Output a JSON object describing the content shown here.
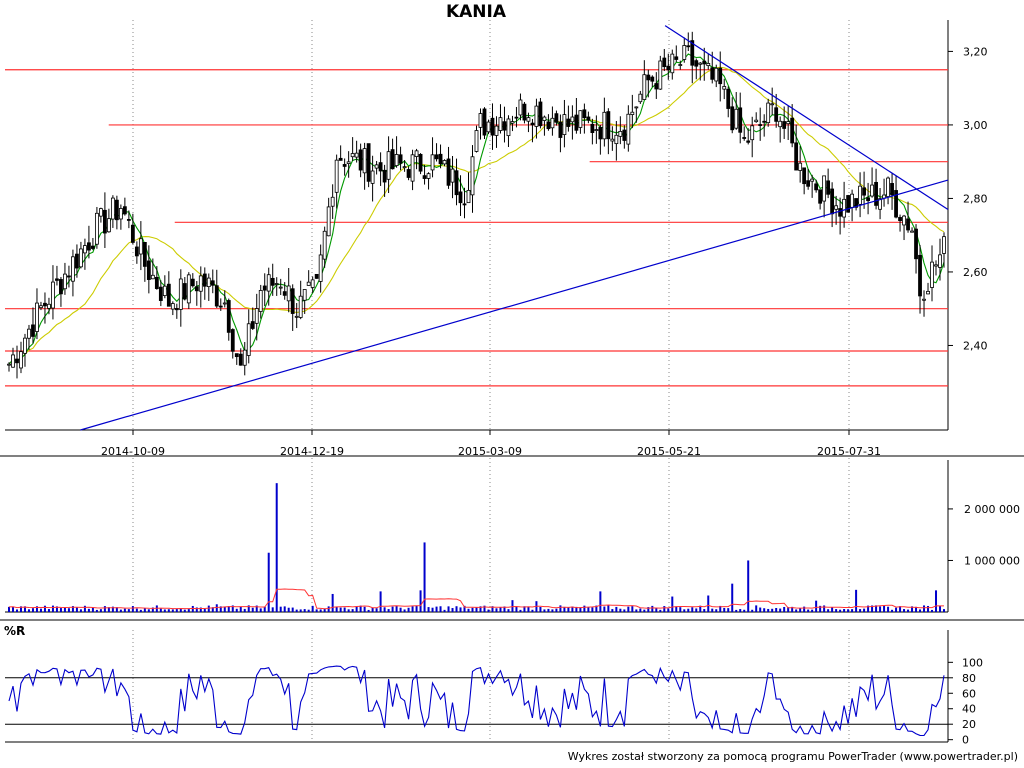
{
  "chart_data": {
    "title": "KANIA",
    "footer": "Wykres został stworzony za pomocą programu PowerTrader (www.powertrader.pl)",
    "price": {
      "type": "candlestick",
      "x_tick_labels": [
        "2014-10-09",
        "2014-12-19",
        "2015-03-09",
        "2015-05-21",
        "2015-07-31"
      ],
      "y_tick_labels": [
        "2,40",
        "2,60",
        "2,80",
        "3,00",
        "3,20"
      ],
      "y_ticks": [
        2.4,
        2.6,
        2.8,
        3.0,
        3.2
      ],
      "ylim": [
        2.17,
        3.28
      ],
      "sessions": 235,
      "horizontal_levels": [
        {
          "value": 3.15,
          "from": 0.0,
          "to": 1.0
        },
        {
          "value": 3.0,
          "from": 0.11,
          "to": 1.0
        },
        {
          "value": 2.9,
          "from": 0.62,
          "to": 1.0
        },
        {
          "value": 2.735,
          "from": 0.18,
          "to": 1.0
        },
        {
          "value": 2.5,
          "from": 0.0,
          "to": 1.0
        },
        {
          "value": 2.385,
          "from": 0.0,
          "to": 1.0
        },
        {
          "value": 2.29,
          "from": 0.0,
          "to": 1.0
        }
      ],
      "trendlines": [
        {
          "from": [
            0.08,
            2.17
          ],
          "to": [
            1.0,
            2.85
          ]
        },
        {
          "from": [
            0.7,
            3.27
          ],
          "to": [
            1.0,
            2.77
          ]
        }
      ],
      "colors": {
        "level": "#ff3333",
        "trend": "#0000cc",
        "ma_fast": "#009900",
        "ma_slow": "#cccc00",
        "candle": "#000000"
      }
    },
    "volume": {
      "type": "bar",
      "y_tick_labels": [
        "1 000 000",
        "2 000 000"
      ],
      "y_ticks": [
        1000000,
        2000000
      ],
      "ylim": [
        0,
        2600000
      ],
      "colors": {
        "bar": "#0000cc",
        "avg": "#ff3333"
      }
    },
    "williams_r": {
      "type": "line",
      "label": "%R",
      "y_tick_labels": [
        "0",
        "20",
        "40",
        "60",
        "80",
        "100"
      ],
      "y_ticks": [
        0,
        20,
        40,
        60,
        80,
        100
      ],
      "ylim": [
        -3,
        103
      ],
      "reference_levels": [
        20,
        80
      ],
      "color": "#0000cc"
    }
  }
}
